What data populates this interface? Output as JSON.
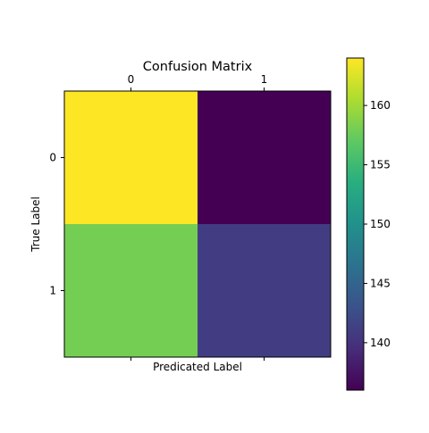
{
  "chart_data": {
    "type": "heatmap",
    "title": "Confusion Matrix",
    "xlabel": "Predicated Label",
    "ylabel": "True Label",
    "x_categories": [
      "0",
      "1"
    ],
    "y_categories": [
      "0",
      "1"
    ],
    "matrix": [
      [
        164,
        136
      ],
      [
        158,
        141
      ]
    ],
    "colormap": "viridis",
    "colorbar": {
      "range": [
        136,
        164
      ],
      "ticks": [
        140,
        145,
        150,
        155,
        160
      ],
      "tick_labels": [
        "140",
        "145",
        "150",
        "155",
        "160"
      ]
    },
    "x_ticks_position": "top",
    "grid": false
  }
}
